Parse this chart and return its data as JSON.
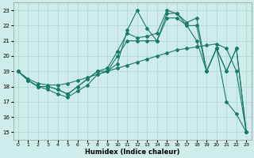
{
  "xlabel": "Humidex (Indice chaleur)",
  "xlim": [
    -0.5,
    23.5
  ],
  "ylim": [
    14.5,
    23.5
  ],
  "yticks": [
    15,
    16,
    17,
    18,
    19,
    20,
    21,
    22,
    23
  ],
  "xticks": [
    0,
    1,
    2,
    3,
    4,
    5,
    6,
    7,
    8,
    9,
    10,
    11,
    12,
    13,
    14,
    15,
    16,
    17,
    18,
    19,
    20,
    21,
    22,
    23
  ],
  "bg_color": "#ceecea",
  "grid_color": "#aed4d0",
  "line_color": "#1a7a6a",
  "curves": [
    {
      "x": [
        0,
        1,
        2,
        3,
        4,
        5,
        6,
        7,
        8,
        9,
        10,
        11,
        12,
        13,
        14,
        15,
        16,
        17,
        18,
        19,
        20,
        21,
        22,
        23
      ],
      "y": [
        19.0,
        18.4,
        18.0,
        17.8,
        17.5,
        17.3,
        17.7,
        18.1,
        18.8,
        19.0,
        19.5,
        21.7,
        23.0,
        21.8,
        21.0,
        22.8,
        22.8,
        22.0,
        21.0,
        19.0,
        20.5,
        17.0,
        16.2,
        15.0
      ]
    },
    {
      "x": [
        0,
        1,
        2,
        3,
        4,
        5,
        6,
        7,
        8,
        9,
        10,
        11,
        12,
        13,
        14,
        15,
        16,
        17,
        18,
        19,
        20,
        21,
        22,
        23
      ],
      "y": [
        19.0,
        18.4,
        18.0,
        18.0,
        17.8,
        17.5,
        18.0,
        18.5,
        19.0,
        19.2,
        20.3,
        21.5,
        21.2,
        21.3,
        21.5,
        23.0,
        22.8,
        22.2,
        22.5,
        19.0,
        20.5,
        19.0,
        20.5,
        15.0
      ]
    },
    {
      "x": [
        0,
        1,
        2,
        3,
        4,
        5,
        6,
        7,
        8,
        9,
        10,
        11,
        12,
        13,
        14,
        15,
        16,
        17,
        18,
        19,
        20,
        21,
        22,
        23
      ],
      "y": [
        19.0,
        18.4,
        18.0,
        18.0,
        17.8,
        17.5,
        18.0,
        18.5,
        19.0,
        19.0,
        20.0,
        21.0,
        21.0,
        21.0,
        21.0,
        22.5,
        22.5,
        22.0,
        22.0,
        19.0,
        20.5,
        19.0,
        20.5,
        15.0
      ]
    },
    {
      "x": [
        0,
        1,
        2,
        3,
        4,
        5,
        6,
        7,
        8,
        9,
        10,
        11,
        12,
        13,
        14,
        15,
        16,
        17,
        18,
        19,
        20,
        21,
        22,
        23
      ],
      "y": [
        19.0,
        18.5,
        18.2,
        18.1,
        18.1,
        18.2,
        18.4,
        18.6,
        18.8,
        19.0,
        19.2,
        19.4,
        19.6,
        19.8,
        20.0,
        20.2,
        20.4,
        20.5,
        20.6,
        20.7,
        20.8,
        20.5,
        19.0,
        15.0
      ]
    }
  ]
}
